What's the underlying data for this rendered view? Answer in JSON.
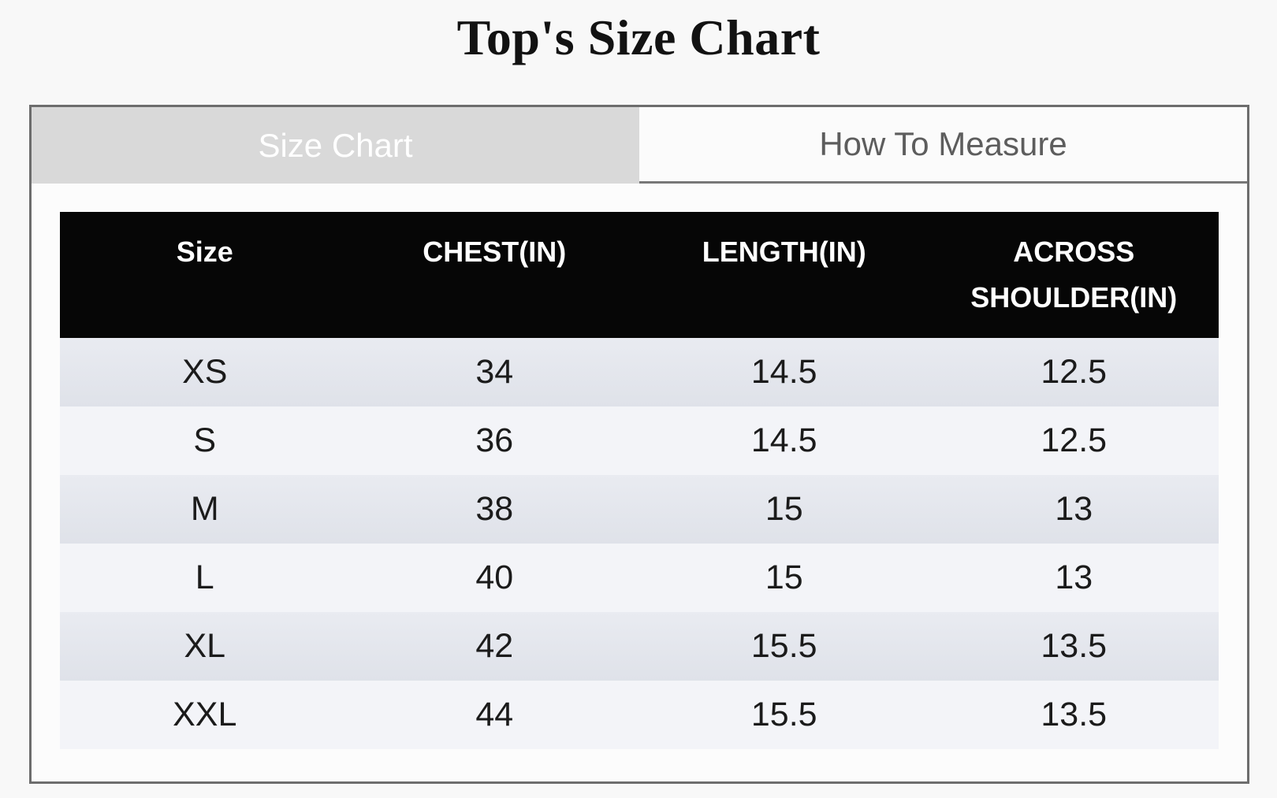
{
  "page": {
    "title": "Top's Size Chart"
  },
  "tabs": [
    {
      "label": "Size Chart",
      "active": true
    },
    {
      "label": "How To Measure",
      "active": false
    }
  ],
  "size_table": {
    "columns": [
      "Size",
      "CHEST(IN)",
      "LENGTH(IN)",
      "ACROSS SHOULDER(IN)"
    ],
    "rows": [
      [
        "XS",
        "34",
        "14.5",
        "12.5"
      ],
      [
        "S",
        "36",
        "14.5",
        "12.5"
      ],
      [
        "M",
        "38",
        "15",
        "13"
      ],
      [
        "L",
        "40",
        "15",
        "13"
      ],
      [
        "XL",
        "42",
        "15.5",
        "13.5"
      ],
      [
        "XXL",
        "44",
        "15.5",
        "13.5"
      ]
    ]
  },
  "colors": {
    "page_background": "#f8f8f8",
    "panel_background": "#fcfcfc",
    "panel_border": "#6d6d6d",
    "tab_active_background": "#d9d9d9",
    "tab_active_text": "#ffffff",
    "tab_inactive_background": "#fbfbfb",
    "tab_inactive_text": "#5d5d5d",
    "table_header_background": "#060606",
    "table_header_text": "#ffffff",
    "row_odd_background": "#e4e7ed",
    "row_even_background": "#f3f4f8",
    "cell_text": "#1b1b1b",
    "title_text": "#121212"
  }
}
